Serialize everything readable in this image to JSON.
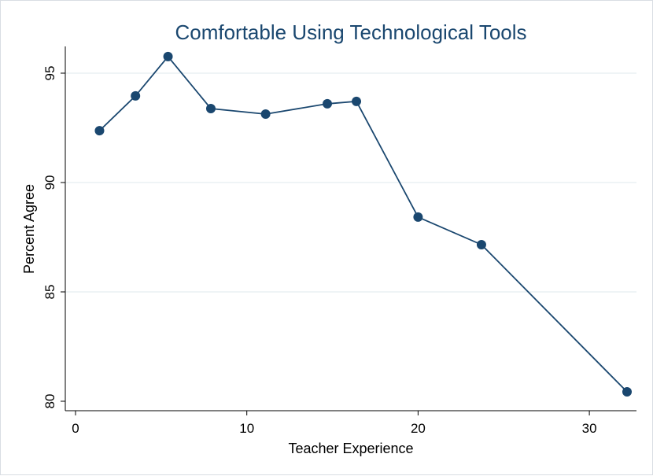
{
  "chart_data": {
    "type": "line",
    "title": "Comfortable Using Technological Tools",
    "xlabel": "Teacher Experience",
    "ylabel": "Percent Agree",
    "xlim": [
      0,
      33
    ],
    "ylim": [
      79.6,
      96.2
    ],
    "xticks": [
      0,
      10,
      20,
      30
    ],
    "yticks": [
      80,
      85,
      90,
      95
    ],
    "grid": true,
    "legend": "none",
    "color": "#1a476f",
    "series": [
      {
        "name": "Percent Agree",
        "x": [
          1.4,
          3.5,
          5.4,
          7.9,
          11.1,
          14.7,
          16.4,
          20.0,
          23.7,
          32.2
        ],
        "y": [
          92.37,
          93.96,
          95.76,
          93.38,
          93.13,
          93.6,
          93.71,
          88.42,
          87.16,
          80.43
        ]
      }
    ]
  }
}
